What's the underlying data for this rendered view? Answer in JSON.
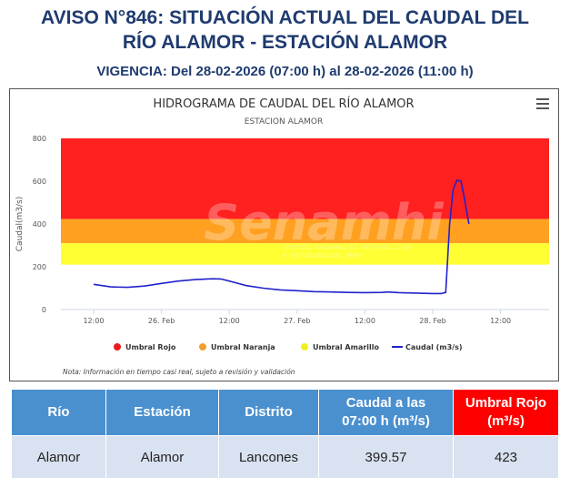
{
  "header": {
    "title_line1": "AVISO N°846: SITUACIÓN ACTUAL DEL CAUDAL DEL",
    "title_line2": "RÍO ALAMOR - ESTACIÓN ALAMOR",
    "vigencia": "VIGENCIA: Del 28-02-2026 (07:00 h) al 28-02-2026 (11:00 h)"
  },
  "chart_data": {
    "type": "line",
    "title": "HIDROGRAMA DE CAUDAL DEL RÍO ALAMOR",
    "subtitle": "ESTACION ALAMOR",
    "ylabel": "Caudal(m3/s)",
    "xlabel": "",
    "ylim": [
      0,
      800
    ],
    "yticks": [
      0,
      200,
      400,
      600,
      800
    ],
    "xlim_hours": [
      -3,
      63
    ],
    "xticks": [
      {
        "t": 0,
        "label": "12:00"
      },
      {
        "t": 12,
        "label": "26. Feb"
      },
      {
        "t": 24,
        "label": "12:00"
      },
      {
        "t": 36,
        "label": "27. Feb"
      },
      {
        "t": 48,
        "label": "12:00"
      },
      {
        "t": 60,
        "label": "28. Feb"
      },
      {
        "t": 72,
        "label": "12:00"
      }
    ],
    "bands": [
      {
        "name": "Umbral Rojo",
        "from": 423,
        "to": 800,
        "color": "#ff2020"
      },
      {
        "name": "Umbral Naranja",
        "from": 310,
        "to": 423,
        "color": "#ffa020"
      },
      {
        "name": "Umbral Amarillo",
        "from": 210,
        "to": 310,
        "color": "#ffff33"
      }
    ],
    "series": [
      {
        "name": "Caudal (m3/s)",
        "color": "#2222cc",
        "points": [
          [
            0,
            118
          ],
          [
            3,
            106
          ],
          [
            6,
            104
          ],
          [
            9,
            110
          ],
          [
            12,
            122
          ],
          [
            15,
            133
          ],
          [
            18,
            140
          ],
          [
            21,
            144
          ],
          [
            22.5,
            143
          ],
          [
            24,
            133
          ],
          [
            27,
            112
          ],
          [
            30,
            100
          ],
          [
            33,
            92
          ],
          [
            36,
            88
          ],
          [
            39,
            84
          ],
          [
            42,
            82
          ],
          [
            45,
            80
          ],
          [
            48,
            79
          ],
          [
            51,
            80
          ],
          [
            52,
            82
          ],
          [
            54,
            79
          ],
          [
            57,
            77
          ],
          [
            60,
            75
          ],
          [
            61.5,
            75
          ],
          [
            62.3,
            80
          ],
          [
            63,
            400
          ],
          [
            63.6,
            560
          ],
          [
            64.3,
            605
          ],
          [
            65,
            600
          ],
          [
            65.6,
            520
          ],
          [
            66.4,
            400
          ]
        ]
      }
    ],
    "legend": {
      "placement": "bottom",
      "items": [
        {
          "label": "Umbral Rojo",
          "color": "#e81c1c",
          "kind": "dot"
        },
        {
          "label": "Umbral Naranja",
          "color": "#f0a030",
          "kind": "dot"
        },
        {
          "label": "Umbral Amarillo",
          "color": "#f0f020",
          "kind": "dot"
        },
        {
          "label": "Caudal (m3/s)",
          "color": "#2222cc",
          "kind": "line"
        }
      ]
    },
    "note": "Nota: Información en tiempo casi real, sujeto a revisión y validación",
    "grid": false
  },
  "watermark": {
    "brand": "Senamhi",
    "tagline1": "SERVICIO NACIONAL DE METEOROLOGÍA",
    "tagline2": "E HIDROLOGÍA DEL PERÚ"
  },
  "table": {
    "headers": [
      "Río",
      "Estación",
      "Distrito",
      "Caudal a las|07:00 h (m³/s)",
      "Umbral Rojo|(m³/s)"
    ],
    "row": [
      "Alamor",
      "Alamor",
      "Lancones",
      "399.57",
      "423"
    ]
  },
  "colors": {
    "title": "#1f3b6f",
    "header_blue": "#4a90cf",
    "header_red": "#ff0000",
    "cell_bg": "#d9e2f0"
  }
}
